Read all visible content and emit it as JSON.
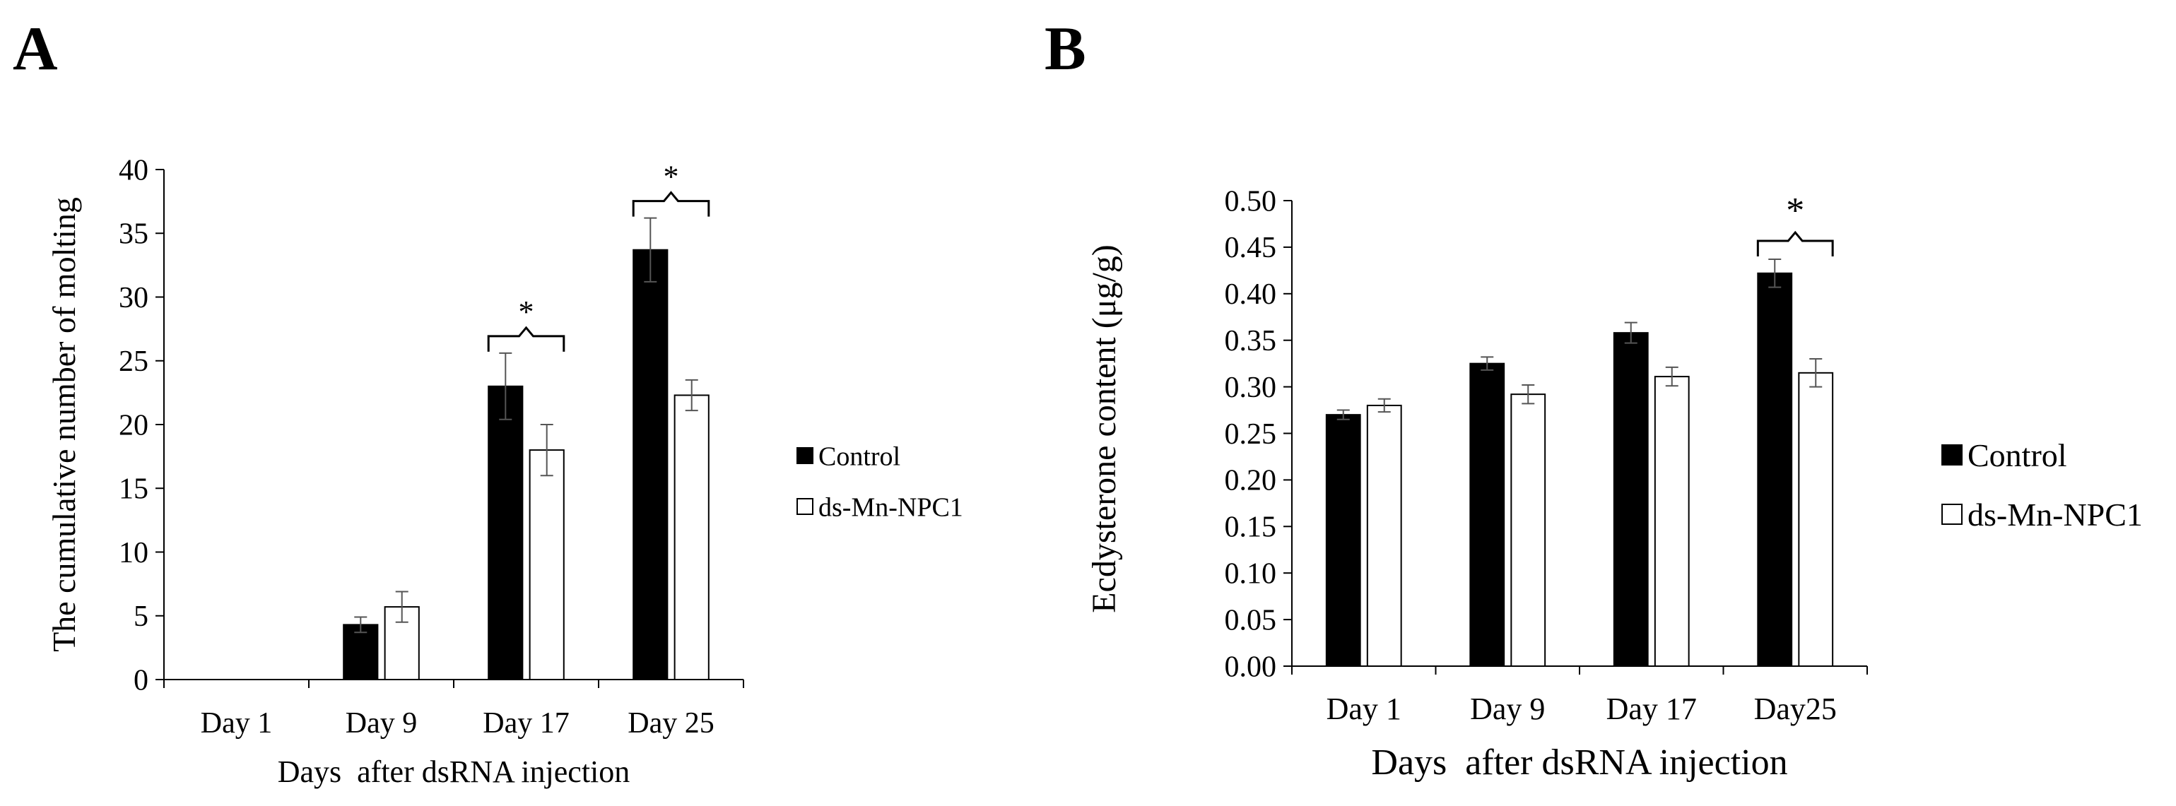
{
  "colors": {
    "control": "#000000",
    "treated": "#ffffff",
    "axis": "#000000",
    "error_bar": "#555555"
  },
  "chart_data": [
    {
      "panel": "A",
      "type": "bar",
      "title": "",
      "xlabel": "Days  after dsRNA injection",
      "ylabel": "The cumulative number of molting",
      "categories": [
        "Day 1",
        "Day 9",
        "Day 17",
        "Day 25"
      ],
      "ylim": [
        0,
        40
      ],
      "yticks": [
        0,
        5,
        10,
        15,
        20,
        25,
        30,
        35,
        40
      ],
      "ytick_decimals": 0,
      "series": [
        {
          "name": "Control",
          "values": [
            0,
            4.3,
            23.0,
            33.7
          ],
          "errors": [
            0,
            0.6,
            2.6,
            2.5
          ]
        },
        {
          "name": "ds-Mn-NPC1",
          "values": [
            0,
            5.7,
            18.0,
            22.3
          ],
          "errors": [
            0,
            1.2,
            2.0,
            1.2
          ]
        }
      ],
      "annotations": [
        {
          "category": "Day 17",
          "text": "*"
        },
        {
          "category": "Day 25",
          "text": "*"
        }
      ],
      "legend": "right"
    },
    {
      "panel": "B",
      "type": "bar",
      "title": "",
      "xlabel": "Days  after dsRNA injection",
      "ylabel": "Ecdysterone content (μg/g)",
      "categories": [
        "Day 1",
        "Day 9",
        "Day 17",
        "Day25"
      ],
      "ylim": [
        0,
        0.5
      ],
      "yticks": [
        0,
        0.05,
        0.1,
        0.15,
        0.2,
        0.25,
        0.3,
        0.35,
        0.4,
        0.45,
        0.5
      ],
      "ytick_decimals": 2,
      "series": [
        {
          "name": "Control",
          "values": [
            0.27,
            0.325,
            0.358,
            0.422
          ],
          "errors": [
            0.005,
            0.007,
            0.011,
            0.015
          ]
        },
        {
          "name": "ds-Mn-NPC1",
          "values": [
            0.28,
            0.292,
            0.311,
            0.315
          ],
          "errors": [
            0.007,
            0.01,
            0.01,
            0.015
          ]
        }
      ],
      "annotations": [
        {
          "category": "Day25",
          "text": "*"
        }
      ],
      "legend": "right"
    }
  ]
}
